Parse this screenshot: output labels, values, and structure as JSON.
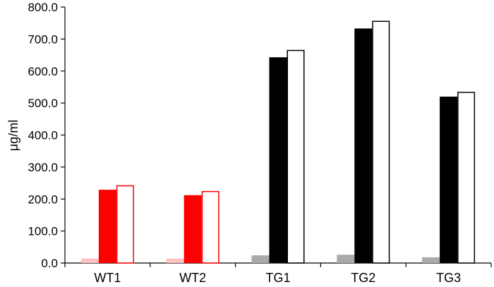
{
  "chart_data": {
    "type": "bar",
    "title": "",
    "xlabel": "",
    "ylabel": "μg/ml",
    "ylim": [
      0,
      800
    ],
    "yticks": [
      "0.0",
      "100.0",
      "200.0",
      "300.0",
      "400.0",
      "500.0",
      "600.0",
      "700.0",
      "800.0"
    ],
    "grid": false,
    "legend": "none",
    "categories": [
      "WT1",
      "WT2",
      "TG1",
      "TG2",
      "TG3"
    ],
    "series": [
      {
        "values": [
          14,
          14,
          24,
          26,
          18
        ],
        "colors": [
          "#ffc0c0",
          "#ffc0c0",
          "#aaaaaa",
          "#aaaaaa",
          "#aaaaaa"
        ],
        "style": "filled-light"
      },
      {
        "values": [
          229,
          212,
          643,
          733,
          520
        ],
        "colors": [
          "#ff0000",
          "#ff0000",
          "#000000",
          "#000000",
          "#000000"
        ],
        "style": "filled"
      },
      {
        "values": [
          243,
          225,
          666,
          757,
          535
        ],
        "colors": [
          "#ff0000",
          "#ff0000",
          "#000000",
          "#000000",
          "#000000"
        ],
        "style": "outline"
      }
    ]
  }
}
